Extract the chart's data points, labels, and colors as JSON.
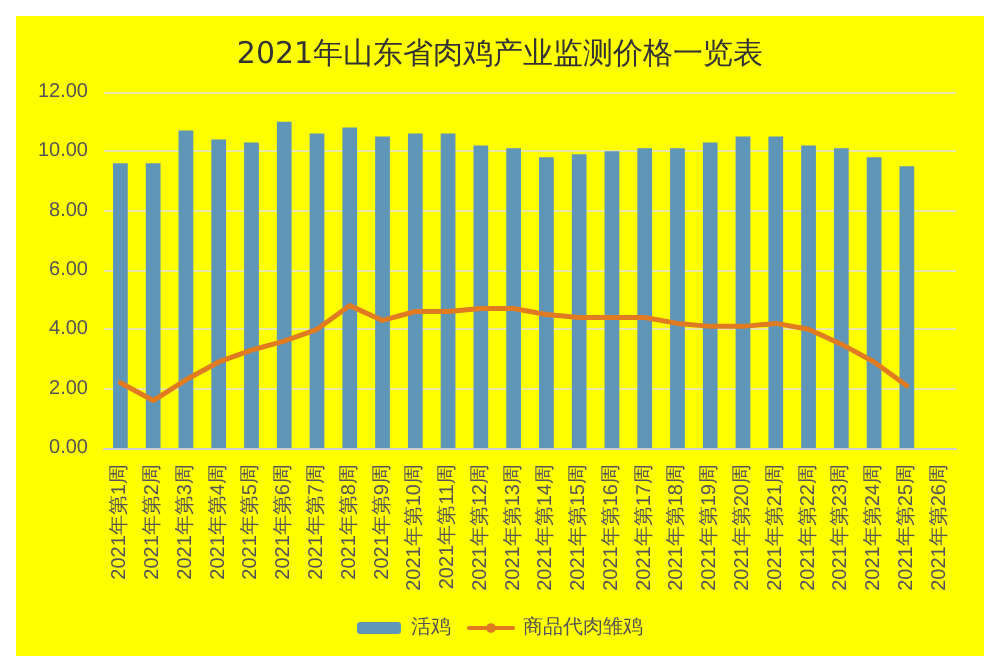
{
  "chart_data": {
    "type": "bar",
    "title": "2021年山东省肉鸡产业监测价格一览表",
    "categories": [
      "2021年第1周",
      "2021年第2周",
      "2021年第3周",
      "2021年第4周",
      "2021年第5周",
      "2021年第6周",
      "2021年第7周",
      "2021年第8周",
      "2021年第9周",
      "2021年第10周",
      "2021年第11周",
      "2021年第12周",
      "2021年第13周",
      "2021年第14周",
      "2021年第15周",
      "2021年第16周",
      "2021年第17周",
      "2021年第18周",
      "2021年第19周",
      "2021年第20周",
      "2021年第21周",
      "2021年第22周",
      "2021年第23周",
      "2021年第24周",
      "2021年第25周",
      "2021年第26周"
    ],
    "series": [
      {
        "name": "活鸡",
        "color": "#5f96b8",
        "values": [
          9.6,
          9.6,
          10.7,
          10.4,
          10.3,
          11.0,
          10.6,
          10.8,
          10.5,
          10.6,
          10.6,
          10.2,
          10.1,
          9.8,
          9.9,
          10.0,
          10.1,
          10.1,
          10.3,
          10.5,
          10.5,
          10.2,
          10.1,
          9.8,
          9.5,
          null
        ]
      },
      {
        "name": "商品代肉雏鸡",
        "type": "line",
        "color": "#e07b22",
        "values": [
          2.2,
          1.6,
          2.3,
          2.9,
          3.3,
          3.6,
          4.0,
          4.8,
          4.3,
          4.6,
          4.6,
          4.7,
          4.7,
          4.5,
          4.4,
          4.4,
          4.4,
          4.2,
          4.1,
          4.1,
          4.2,
          4.0,
          3.5,
          2.9,
          2.1,
          null
        ]
      }
    ],
    "ylim": [
      0,
      12
    ],
    "yticks": [
      {
        "value": 0,
        "label": "0.00"
      },
      {
        "value": 2,
        "label": "2.00"
      },
      {
        "value": 4,
        "label": "4.00"
      },
      {
        "value": 6,
        "label": "6.00"
      },
      {
        "value": 8,
        "label": "8.00"
      },
      {
        "value": 10,
        "label": "10.00"
      },
      {
        "value": 12,
        "label": "12.00"
      }
    ],
    "grid": "y",
    "legend": "bottom",
    "marker": "none",
    "line_style": "solid"
  }
}
